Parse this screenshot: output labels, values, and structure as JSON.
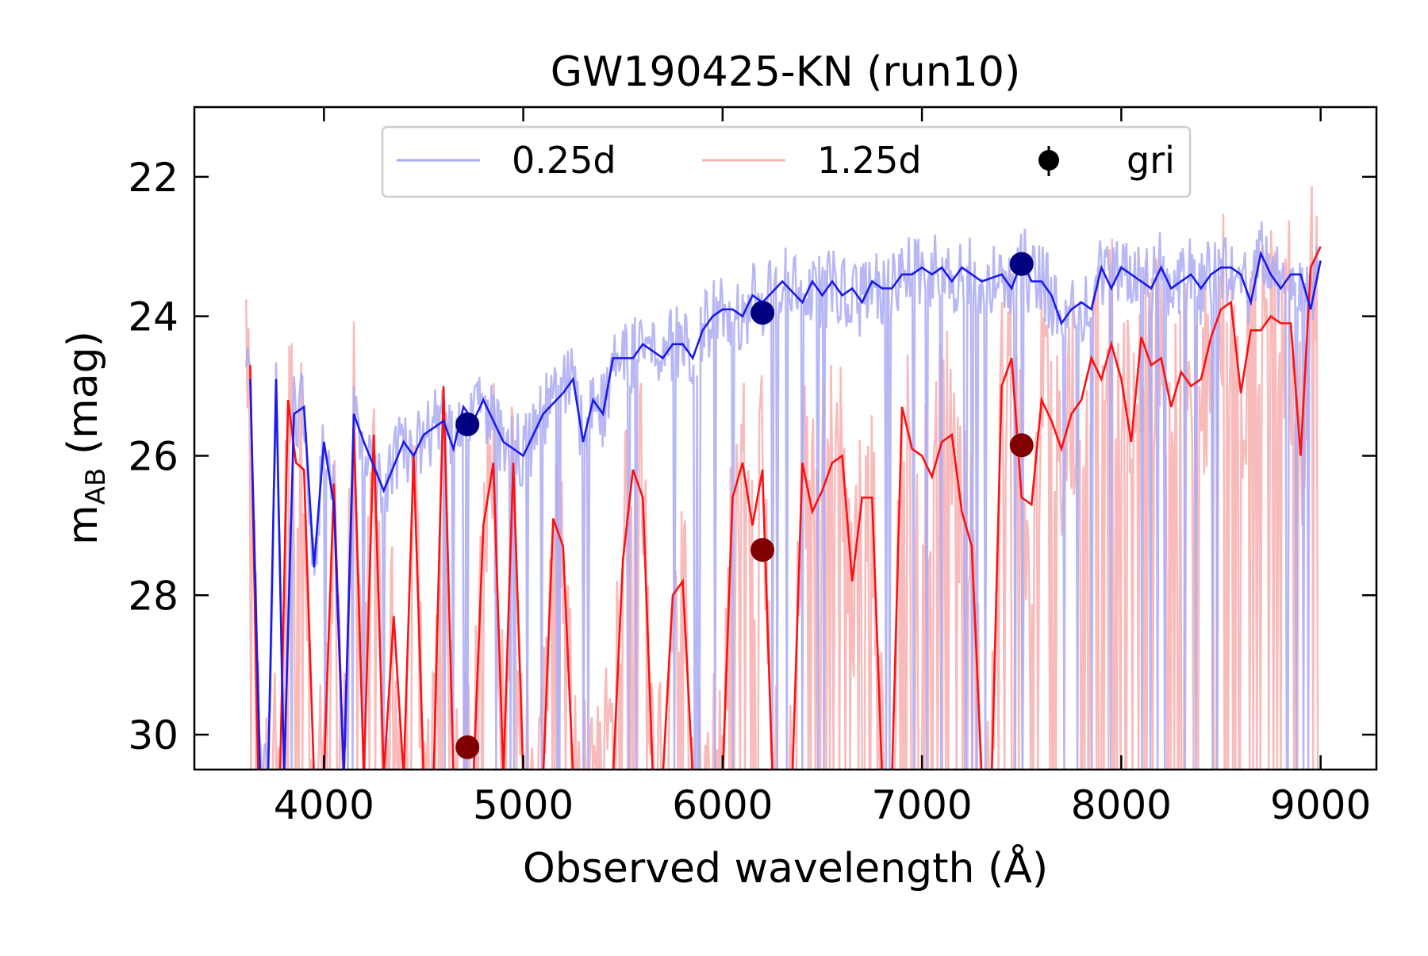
{
  "chart_data": {
    "type": "line",
    "title": "GW190425-KN (run10)",
    "xlabel": "Observed wavelength (Å)",
    "ylabel": {
      "main": "m",
      "sub": "AB",
      "unit": " (mag)"
    },
    "xlim": [
      3350,
      9280
    ],
    "ylim": [
      21,
      30.5
    ],
    "y_inverted": true,
    "xticks": [
      4000,
      5000,
      6000,
      7000,
      8000,
      9000
    ],
    "xtick_labels": [
      "4000",
      "5000",
      "6000",
      "7000",
      "8000",
      "9000"
    ],
    "yticks": [
      22,
      24,
      26,
      28,
      30
    ],
    "ytick_labels": [
      "22",
      "24",
      "26",
      "28",
      "30"
    ],
    "grid": false,
    "legend_position": "top-center",
    "legend": [
      {
        "label": "0.25d",
        "kind": "line",
        "color": "#aaaaf5"
      },
      {
        "label": "1.25d",
        "kind": "line",
        "color": "#f7b2b2"
      },
      {
        "label": "gri",
        "kind": "marker",
        "color": "#000000"
      }
    ],
    "colors": {
      "early_raw": "#aaaaf5",
      "early_smooth": "#1a1aee",
      "late_raw": "#f7b2b2",
      "late_smooth": "#ff1010",
      "early_points": "#000080",
      "late_points": "#800000"
    },
    "series": [
      {
        "name": "0.25d",
        "x": [
          3630,
          3680,
          3720,
          3760,
          3800,
          3850,
          3900,
          3950,
          4000,
          4050,
          4100,
          4150,
          4200,
          4300,
          4400,
          4450,
          4500,
          4550,
          4600,
          4650,
          4700,
          4750,
          4800,
          4850,
          4900,
          4950,
          5000,
          5050,
          5100,
          5200,
          5250,
          5300,
          5350,
          5400,
          5450,
          5500,
          5550,
          5600,
          5650,
          5700,
          5750,
          5800,
          5850,
          5900,
          5950,
          6000,
          6050,
          6100,
          6150,
          6200,
          6300,
          6400,
          6450,
          6500,
          6550,
          6600,
          6650,
          6700,
          6750,
          6800,
          6850,
          6900,
          6950,
          7000,
          7050,
          7100,
          7150,
          7200,
          7300,
          7400,
          7450,
          7500,
          7550,
          7600,
          7650,
          7700,
          7750,
          7800,
          7850,
          7900,
          7950,
          8000,
          8050,
          8100,
          8150,
          8200,
          8250,
          8300,
          8350,
          8400,
          8450,
          8500,
          8550,
          8600,
          8650,
          8700,
          8750,
          8800,
          8850,
          8900,
          8950,
          9000
        ],
        "values": [
          24.9,
          30.6,
          30.6,
          24.9,
          30.6,
          25.4,
          25.3,
          27.6,
          25.8,
          26.7,
          30.6,
          25.4,
          25.8,
          26.5,
          25.8,
          26.0,
          25.7,
          25.6,
          25.5,
          25.9,
          25.3,
          25.5,
          25.2,
          25.5,
          25.8,
          25.9,
          26.0,
          25.7,
          25.4,
          25.1,
          24.9,
          25.8,
          25.2,
          25.4,
          24.6,
          24.6,
          24.6,
          24.4,
          24.5,
          24.6,
          24.4,
          24.4,
          24.6,
          24.2,
          24.0,
          23.9,
          23.9,
          24.0,
          23.7,
          23.8,
          23.5,
          23.8,
          23.5,
          23.7,
          23.5,
          23.7,
          23.6,
          23.8,
          23.5,
          23.6,
          23.6,
          23.4,
          23.4,
          23.3,
          23.4,
          23.3,
          23.5,
          23.3,
          23.5,
          23.4,
          23.6,
          23.2,
          23.5,
          23.5,
          23.7,
          24.1,
          23.9,
          23.8,
          23.9,
          23.3,
          23.6,
          23.3,
          23.4,
          23.5,
          23.6,
          23.3,
          23.6,
          23.5,
          23.4,
          23.6,
          23.4,
          23.3,
          23.3,
          23.4,
          23.8,
          23.1,
          23.4,
          23.6,
          23.4,
          23.4,
          23.9,
          23.2
        ]
      },
      {
        "name": "1.25d",
        "x": [
          3630,
          3670,
          3700,
          3740,
          3780,
          3820,
          3860,
          3900,
          3950,
          4000,
          4050,
          4100,
          4150,
          4200,
          4250,
          4300,
          4350,
          4400,
          4450,
          4500,
          4550,
          4600,
          4650,
          4700,
          4750,
          4800,
          4850,
          4900,
          4950,
          5000,
          5050,
          5100,
          5150,
          5200,
          5250,
          5300,
          5350,
          5400,
          5450,
          5500,
          5550,
          5600,
          5650,
          5700,
          5750,
          5800,
          5850,
          5900,
          5950,
          6000,
          6050,
          6100,
          6150,
          6200,
          6250,
          6300,
          6350,
          6400,
          6450,
          6500,
          6550,
          6600,
          6650,
          6700,
          6750,
          6800,
          6850,
          6900,
          6950,
          7000,
          7050,
          7100,
          7150,
          7200,
          7250,
          7300,
          7350,
          7400,
          7450,
          7500,
          7550,
          7600,
          7650,
          7700,
          7750,
          7800,
          7850,
          7900,
          7950,
          8000,
          8050,
          8100,
          8150,
          8200,
          8250,
          8300,
          8350,
          8400,
          8450,
          8500,
          8550,
          8600,
          8650,
          8700,
          8750,
          8800,
          8850,
          8900,
          8950,
          9000
        ],
        "values": [
          24.7,
          30.6,
          30.6,
          30.6,
          30.6,
          25.2,
          26.1,
          26.2,
          30.6,
          30.6,
          26.4,
          30.6,
          25.6,
          30.6,
          25.7,
          30.6,
          28.3,
          30.6,
          26.0,
          30.6,
          30.6,
          25.0,
          30.6,
          30.6,
          30.6,
          27.0,
          26.1,
          30.6,
          26.1,
          30.6,
          30.6,
          30.6,
          26.9,
          27.3,
          30.6,
          30.6,
          30.6,
          30.6,
          30.6,
          27.5,
          26.2,
          26.6,
          30.6,
          30.6,
          28.0,
          27.8,
          30.6,
          30.6,
          30.6,
          30.6,
          26.6,
          26.1,
          27.0,
          26.2,
          30.6,
          30.6,
          30.6,
          26.1,
          26.8,
          26.5,
          26.1,
          26.0,
          27.8,
          26.6,
          26.6,
          30.6,
          30.6,
          25.3,
          25.9,
          26.0,
          26.3,
          25.8,
          25.7,
          26.8,
          27.3,
          30.6,
          30.6,
          25.0,
          24.6,
          26.6,
          26.7,
          25.2,
          25.5,
          25.9,
          25.4,
          25.2,
          24.6,
          24.9,
          24.4,
          24.9,
          25.8,
          24.3,
          24.7,
          24.6,
          25.3,
          24.8,
          25.0,
          24.9,
          24.3,
          23.9,
          23.8,
          25.1,
          24.2,
          24.2,
          24.0,
          24.1,
          24.1,
          26.0,
          23.3,
          23.0
        ]
      }
    ],
    "points": [
      {
        "name": "0.25d",
        "filter": [
          "g",
          "r",
          "i"
        ],
        "x": [
          4720,
          6200,
          7500
        ],
        "values": [
          25.55,
          23.95,
          23.25
        ]
      },
      {
        "name": "1.25d",
        "filter": [
          "g",
          "r",
          "i"
        ],
        "x": [
          4720,
          6200,
          7500
        ],
        "values": [
          30.18,
          27.35,
          25.85
        ]
      }
    ]
  }
}
